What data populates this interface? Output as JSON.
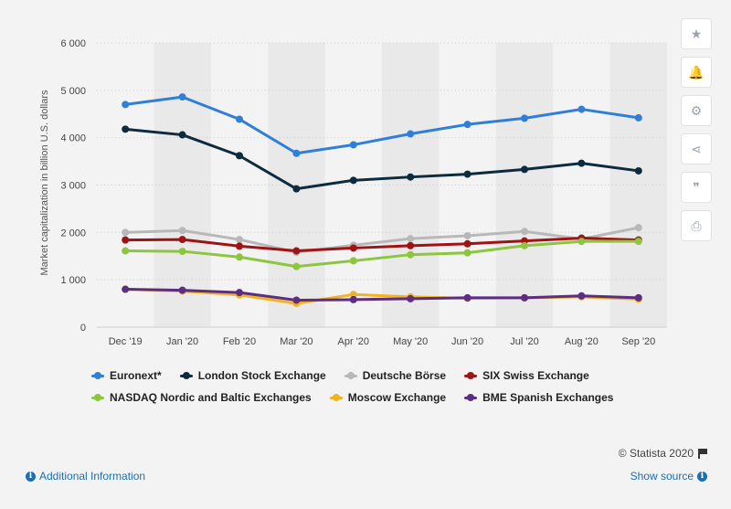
{
  "chart_data": {
    "type": "line",
    "ylabel": "Market capitalization in billion U.S. dollars",
    "ylim": [
      0,
      6000
    ],
    "yticks": [
      0,
      1000,
      2000,
      3000,
      4000,
      5000,
      6000
    ],
    "ytick_labels": [
      "0",
      "1 000",
      "2 000",
      "3 000",
      "4 000",
      "5 000",
      "6 000"
    ],
    "categories": [
      "Dec '19",
      "Jan '20",
      "Feb '20",
      "Mar '20",
      "Apr '20",
      "May '20",
      "Jun '20",
      "Jul '20",
      "Aug '20",
      "Sep '20"
    ],
    "grid": true,
    "legend_position": "bottom",
    "series": [
      {
        "name": "Euronext*",
        "color": "#2f7ed8",
        "values": [
          4700,
          4860,
          4390,
          3670,
          3850,
          4080,
          4280,
          4410,
          4600,
          4420
        ]
      },
      {
        "name": "London Stock Exchange",
        "color": "#0d2b3e",
        "values": [
          4180,
          4060,
          3620,
          2920,
          3100,
          3170,
          3230,
          3330,
          3460,
          3300
        ]
      },
      {
        "name": "Deutsche Börse",
        "color": "#b8b8b8",
        "values": [
          2000,
          2040,
          1850,
          1580,
          1730,
          1870,
          1930,
          2020,
          1860,
          2100
        ]
      },
      {
        "name": "SIX Swiss Exchange",
        "color": "#9e1414",
        "values": [
          1840,
          1850,
          1710,
          1610,
          1670,
          1720,
          1760,
          1820,
          1880,
          1840
        ]
      },
      {
        "name": "NASDAQ Nordic and Baltic Exchanges",
        "color": "#8cc63e",
        "values": [
          1610,
          1600,
          1480,
          1280,
          1400,
          1530,
          1570,
          1720,
          1810,
          1810
        ]
      },
      {
        "name": "Moscow Exchange",
        "color": "#f2b322",
        "values": [
          800,
          760,
          680,
          500,
          690,
          640,
          610,
          620,
          640,
          590
        ]
      },
      {
        "name": "BME Spanish Exchanges",
        "color": "#5d2d82",
        "values": [
          800,
          780,
          730,
          570,
          580,
          600,
          620,
          620,
          660,
          620
        ]
      }
    ]
  },
  "toolbar": {
    "buttons": [
      {
        "icon": "star-icon",
        "glyph": "★"
      },
      {
        "icon": "bell-icon",
        "glyph": "🔔"
      },
      {
        "icon": "gear-icon",
        "glyph": "⚙"
      },
      {
        "icon": "share-icon",
        "glyph": "⋖"
      },
      {
        "icon": "quote-icon",
        "glyph": "❞"
      },
      {
        "icon": "print-icon",
        "glyph": "⎙"
      }
    ]
  },
  "footer": {
    "credit": "© Statista 2020",
    "additional_info": "Additional Information",
    "show_source": "Show source"
  }
}
